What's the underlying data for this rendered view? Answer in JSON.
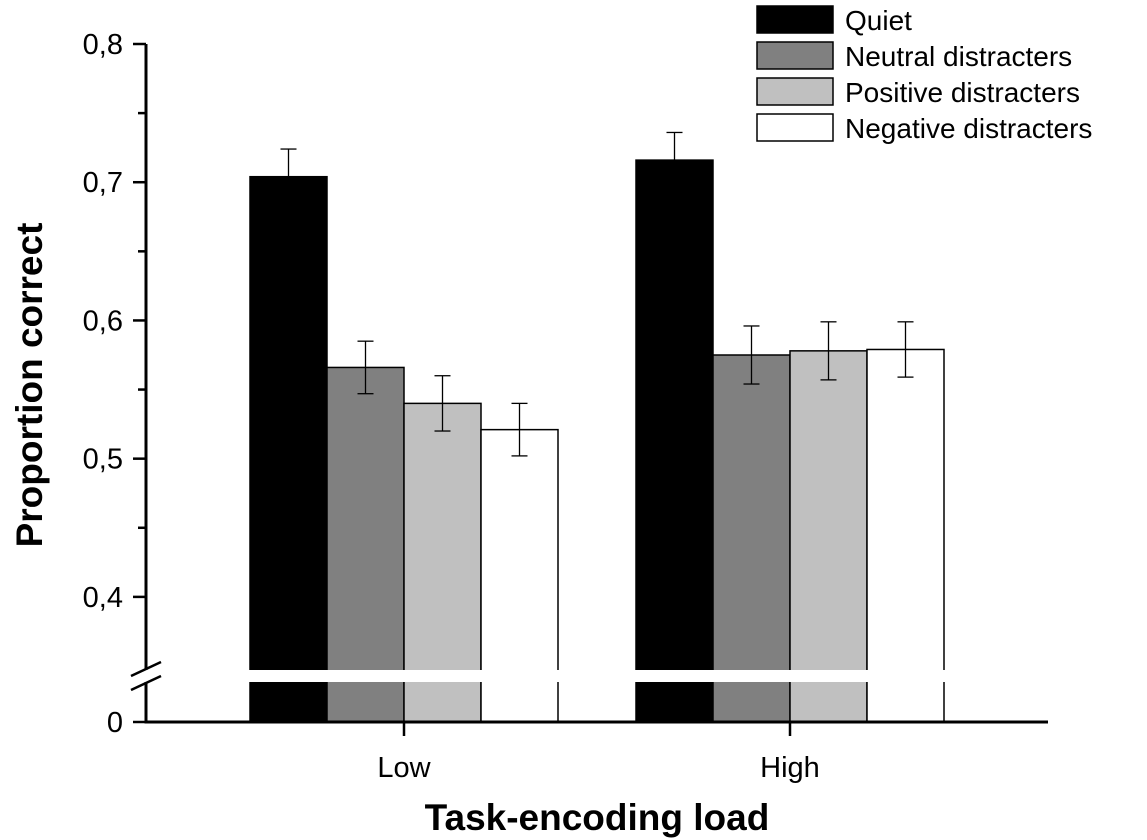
{
  "chart_data": {
    "type": "bar",
    "xlabel": "Task-encoding load",
    "ylabel": "Proportion correct",
    "categories": [
      "Low",
      "High"
    ],
    "y_break": {
      "from": 0,
      "to": 0.35
    },
    "ylim": [
      0.35,
      0.8
    ],
    "y_ticks": [
      {
        "value": 0,
        "label": "0"
      },
      {
        "value": 0.4,
        "label": "0,4"
      },
      {
        "value": 0.5,
        "label": "0,5"
      },
      {
        "value": 0.6,
        "label": "0,6"
      },
      {
        "value": 0.7,
        "label": "0,7"
      },
      {
        "value": 0.8,
        "label": "0,8"
      }
    ],
    "series": [
      {
        "name": "Quiet",
        "color": "#000000",
        "values": [
          0.704,
          0.716
        ],
        "errors": [
          0.02,
          0.02
        ]
      },
      {
        "name": "Neutral distracters",
        "color": "#808080",
        "values": [
          0.566,
          0.575
        ],
        "errors": [
          0.019,
          0.021
        ]
      },
      {
        "name": "Positive distracters",
        "color": "#c0c0c0",
        "values": [
          0.54,
          0.578
        ],
        "errors": [
          0.02,
          0.021
        ]
      },
      {
        "name": "Negative distracters",
        "color": "#ffffff",
        "values": [
          0.521,
          0.579
        ],
        "errors": [
          0.019,
          0.02
        ]
      }
    ],
    "legend": "top-right",
    "grid": false
  }
}
